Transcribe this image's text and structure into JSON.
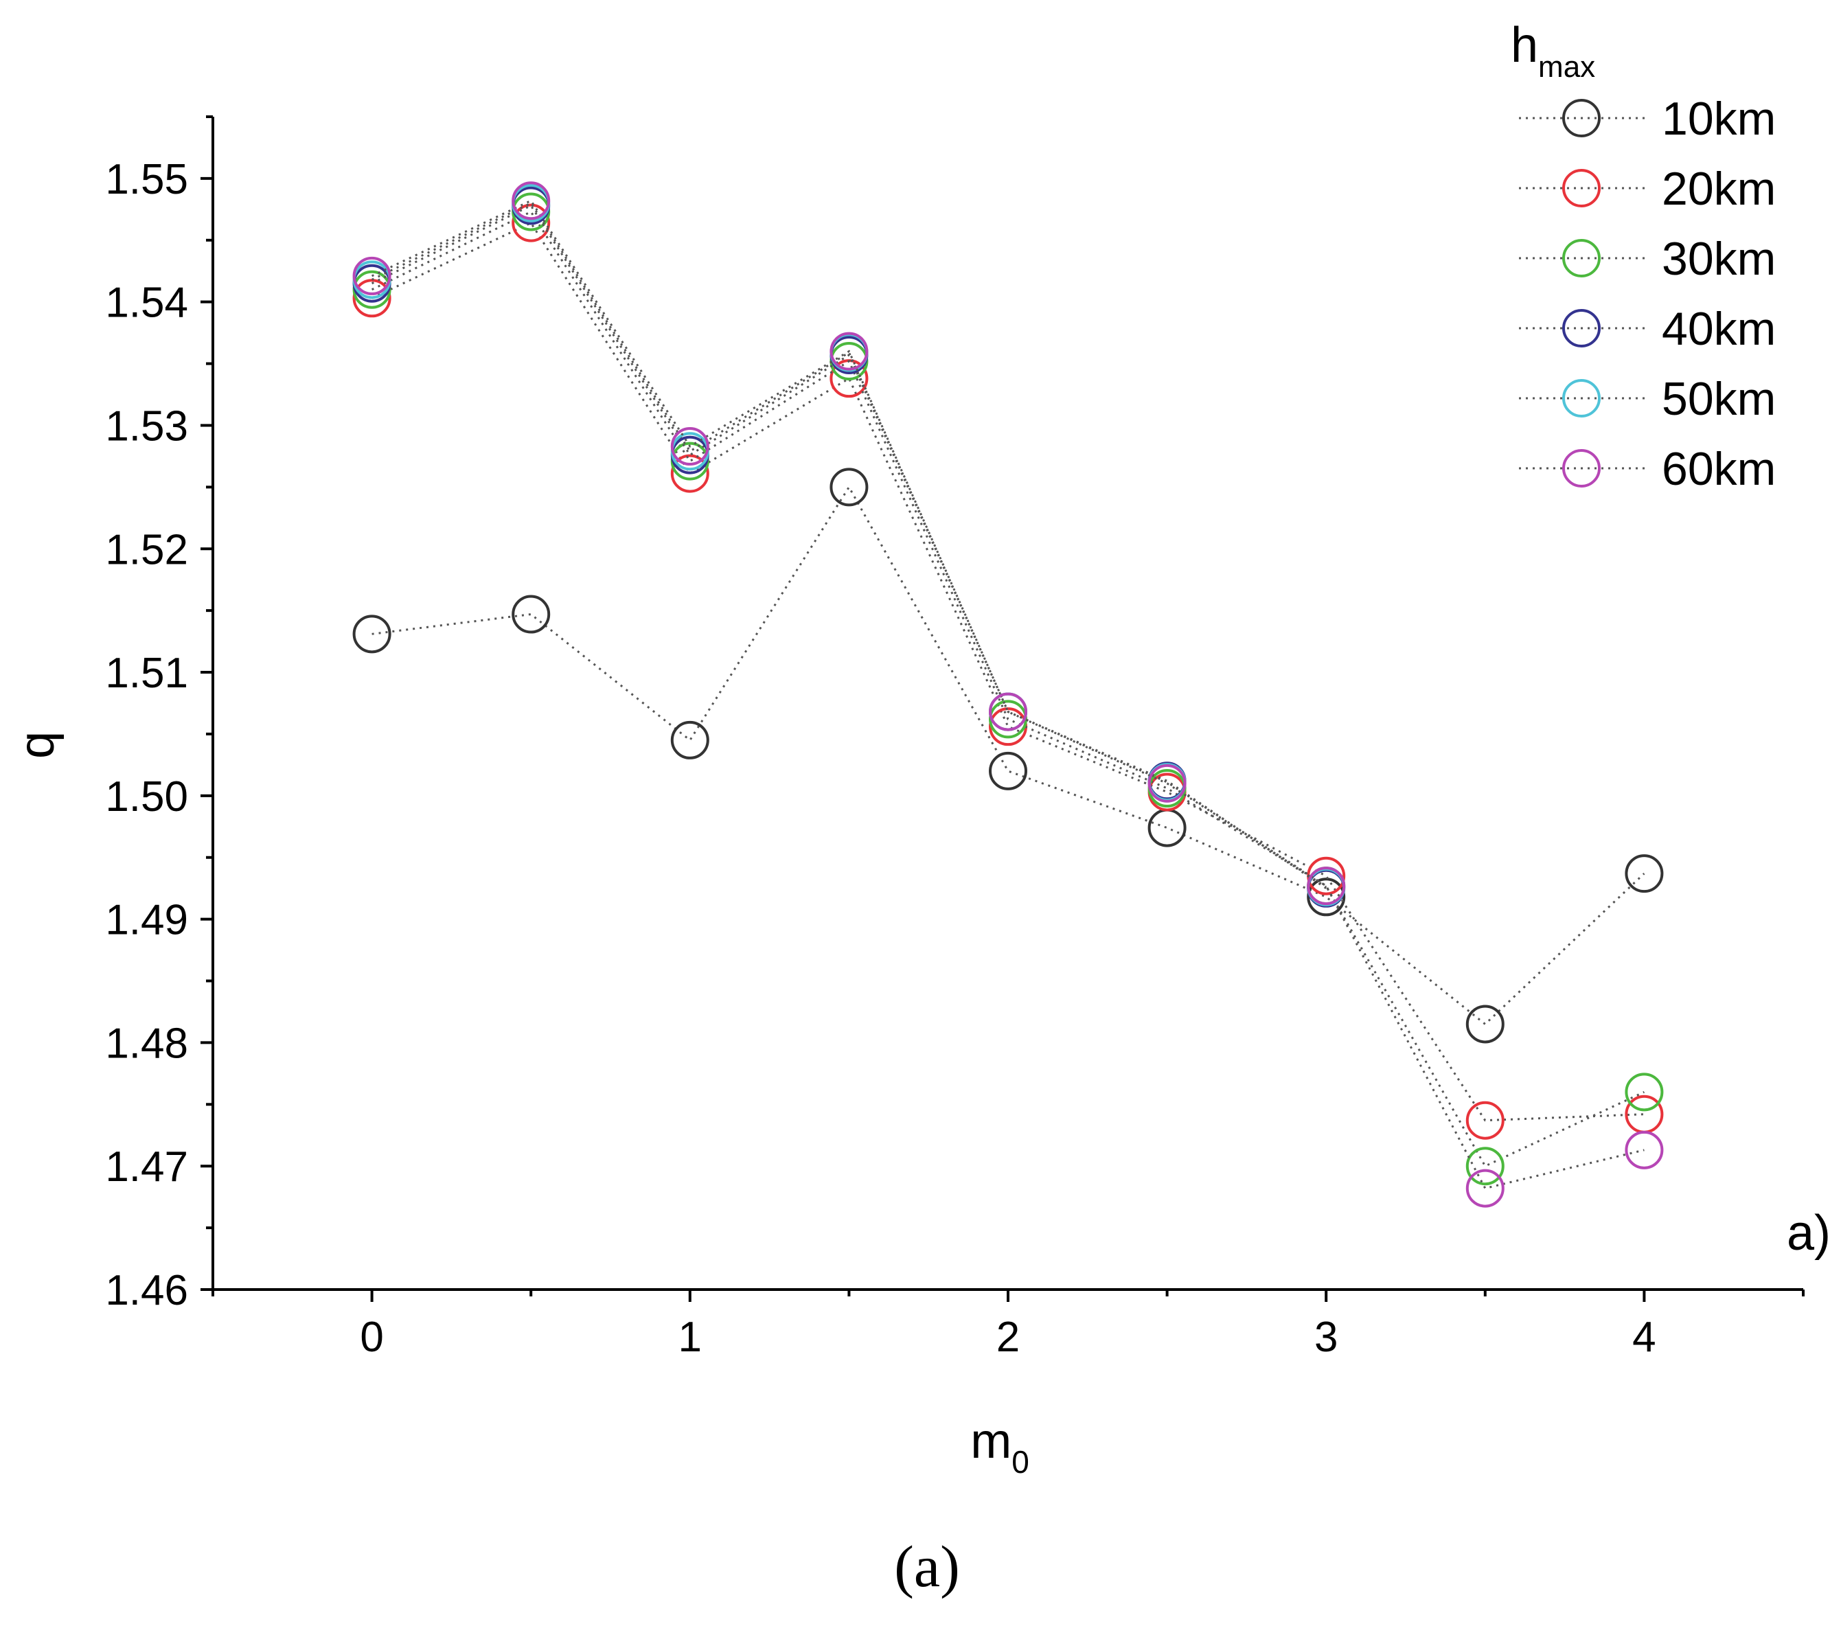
{
  "chart_data": {
    "type": "scatter",
    "xlabel": "m",
    "xlabel_sub": "0",
    "ylabel": "q",
    "xlim": [
      -0.5,
      4.5
    ],
    "ylim": [
      1.46,
      1.555
    ],
    "x_ticks": [
      "0",
      "1",
      "2",
      "3",
      "4"
    ],
    "y_ticks": [
      "1.46",
      "1.47",
      "1.48",
      "1.49",
      "1.50",
      "1.51",
      "1.52",
      "1.53",
      "1.54",
      "1.55"
    ],
    "legend_title": "h",
    "legend_title_sub": "max",
    "legend_position": "top-right",
    "panel_label": "a)",
    "caption": "(a)",
    "x": [
      0,
      0.5,
      1,
      1.5,
      2,
      2.5,
      3,
      3.5,
      4
    ],
    "series": [
      {
        "name": "10km",
        "color": "#333333",
        "values": [
          1.5131,
          1.5147,
          1.5045,
          1.525,
          1.502,
          1.4974,
          1.4918,
          1.4815,
          1.4937
        ]
      },
      {
        "name": "20km",
        "color": "#e8333a",
        "values": [
          1.5403,
          1.5464,
          1.5261,
          1.5338,
          1.5056,
          1.5003,
          1.4935,
          1.4737,
          1.4742
        ]
      },
      {
        "name": "30km",
        "color": "#4cb83e",
        "values": [
          1.541,
          1.5473,
          1.5271,
          1.5352,
          1.5062,
          1.5006,
          1.4927,
          1.47,
          1.476
        ]
      },
      {
        "name": "40km",
        "color": "#33338f",
        "values": [
          1.5415,
          1.5478,
          1.5276,
          1.5357,
          1.5068,
          1.5012,
          1.4925,
          null,
          null
        ]
      },
      {
        "name": "50km",
        "color": "#4fc3d8",
        "values": [
          1.5418,
          1.548,
          1.5279,
          1.5359,
          1.5068,
          1.5011,
          1.4926,
          null,
          null
        ]
      },
      {
        "name": "60km",
        "color": "#b646b5",
        "values": [
          1.5421,
          1.5482,
          1.5283,
          1.536,
          1.5068,
          1.501,
          1.4927,
          1.4682,
          1.4713
        ]
      }
    ]
  }
}
